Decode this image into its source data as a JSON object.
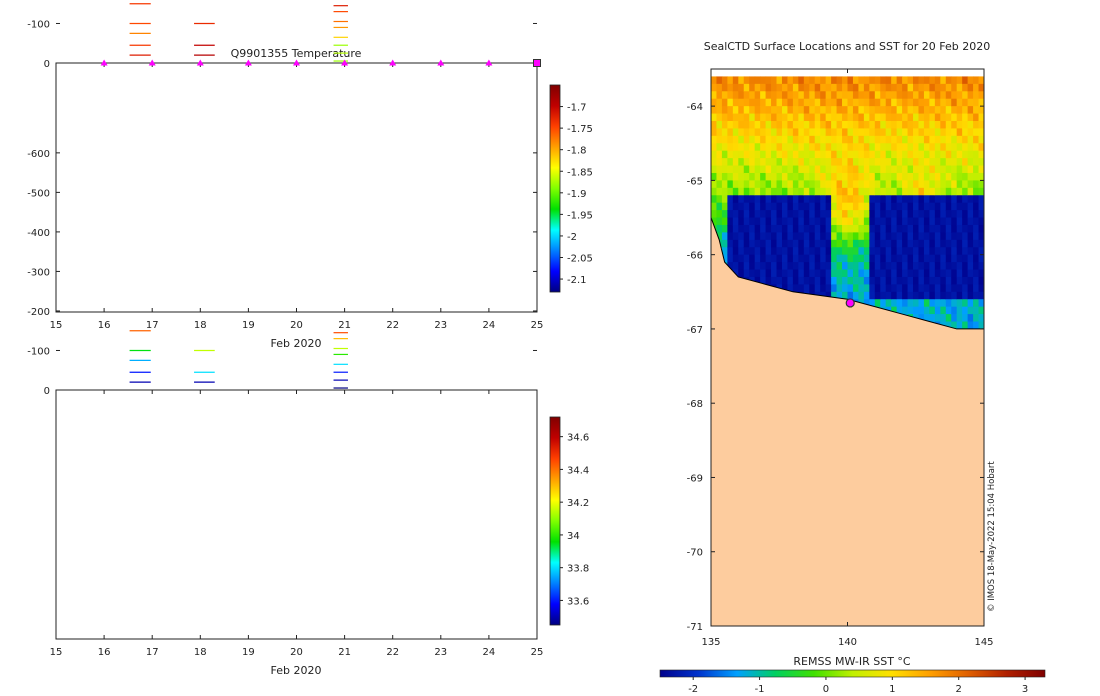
{
  "chart_data": [
    {
      "id": "temperature",
      "type": "heatmap",
      "title": "Q9901355  Temperature",
      "xlabel": "Feb 2020",
      "ylabel": "",
      "xlim": [
        15,
        25
      ],
      "ylim": [
        -630,
        0
      ],
      "xticks": [
        15,
        16,
        17,
        18,
        19,
        20,
        21,
        22,
        23,
        24,
        25
      ],
      "yticks": [
        0,
        -100,
        -200,
        -300,
        -400,
        -500,
        -600
      ],
      "profile_markers_x": [
        16,
        17,
        18,
        19,
        20,
        21,
        22,
        23,
        24
      ],
      "last_marker_x": 25,
      "colorbar": {
        "min": -2.13,
        "max": -1.65,
        "ticks": [
          -1.7,
          -1.75,
          -1.8,
          -1.85,
          -1.9,
          -1.95,
          -2,
          -2.05,
          -2.1
        ],
        "tick_labels": [
          "-1.7",
          "-1.75",
          "-1.8",
          "-1.85",
          "-1.9",
          "-1.95",
          "-2",
          "-2.05",
          "-2.1"
        ]
      },
      "profiles": [
        {
          "x0": 15.5,
          "x1": 15.93,
          "depth": 300,
          "stops": [
            [
              0,
              -1.67
            ],
            [
              0.28,
              -1.7
            ],
            [
              0.48,
              -1.76
            ],
            [
              0.62,
              -1.82
            ],
            [
              0.8,
              -1.87
            ],
            [
              1,
              -1.88
            ]
          ]
        },
        {
          "x0": 15.93,
          "x1": 16.33,
          "depth": 400,
          "stops": [
            [
              0,
              -1.85
            ],
            [
              0.1,
              -1.76
            ],
            [
              0.3,
              -1.73
            ],
            [
              0.48,
              -1.8
            ],
            [
              0.58,
              -1.88
            ],
            [
              0.72,
              -1.92
            ],
            [
              1,
              -1.95
            ]
          ]
        },
        {
          "x0": 16.33,
          "x1": 16.87,
          "depth": 460,
          "stops": [
            [
              0.43,
              -1.88
            ],
            [
              0.6,
              -1.92
            ],
            [
              1,
              -1.95
            ]
          ]
        },
        {
          "x0": 16.87,
          "x1": 17.37,
          "depth": 415,
          "stops": [
            [
              0.5,
              -1.88
            ],
            [
              0.62,
              -1.9
            ],
            [
              0.8,
              -1.95
            ],
            [
              1,
              -1.94
            ]
          ]
        },
        {
          "x0": 17.37,
          "x1": 17.83,
          "depth": 390,
          "stops": [
            [
              0,
              -1.67
            ],
            [
              0.35,
              -1.69
            ],
            [
              0.55,
              -1.74
            ],
            [
              0.7,
              -1.83
            ],
            [
              0.85,
              -1.9
            ],
            [
              1,
              -1.93
            ]
          ]
        },
        {
          "x0": 17.83,
          "x1": 18.3,
          "depth": 500,
          "stops": [
            [
              0.6,
              -1.9
            ],
            [
              0.8,
              -1.93
            ],
            [
              1,
              -1.95
            ]
          ]
        },
        {
          "x0": 18.8,
          "x1": 19.27,
          "depth": 425,
          "stops": [
            [
              0,
              -1.8
            ],
            [
              0.12,
              -1.8
            ],
            [
              0.2,
              -1.72
            ],
            [
              0.32,
              -1.67
            ],
            [
              0.45,
              -1.73
            ],
            [
              0.6,
              -1.79
            ],
            [
              0.78,
              -1.8
            ],
            [
              0.82,
              -1.88
            ],
            [
              1,
              -1.93
            ]
          ]
        },
        {
          "x0": 20.77,
          "x1": 21.07,
          "depth": 265,
          "top": 230,
          "stops": [
            [
              0,
              -1.77
            ],
            [
              1,
              -1.78
            ]
          ]
        },
        {
          "x0": 21.37,
          "x1": 21.73,
          "depth": 500,
          "stops": [
            [
              0,
              -1.84
            ],
            [
              0.04,
              -1.66
            ],
            [
              0.1,
              -1.72
            ],
            [
              0.2,
              -1.78
            ],
            [
              0.32,
              -1.83
            ],
            [
              0.42,
              -1.86
            ],
            [
              0.52,
              -1.91
            ],
            [
              1,
              -1.94
            ]
          ]
        },
        {
          "x0": 22.77,
          "x1": 23.47,
          "depth": 200,
          "stops": [
            [
              0,
              -1.87
            ],
            [
              0.12,
              -1.8
            ],
            [
              0.5,
              -1.78
            ],
            [
              1,
              -1.8
            ]
          ]
        },
        {
          "x0": 23.47,
          "x1": 24.1,
          "depth": 390,
          "stops": [
            [
              0,
              -1.82
            ],
            [
              0.2,
              -1.78
            ],
            [
              0.3,
              -1.76
            ],
            [
              0.35,
              -1.98
            ],
            [
              0.45,
              -1.92
            ],
            [
              0.75,
              -1.89
            ],
            [
              1,
              -1.84
            ]
          ]
        },
        {
          "x0": 24.1,
          "x1": 24.37,
          "depth": 520,
          "stops": [
            [
              0,
              -1.8
            ],
            [
              0.05,
              -1.88
            ],
            [
              0.1,
              -1.74
            ],
            [
              0.2,
              -1.72
            ],
            [
              0.25,
              -1.92
            ],
            [
              0.5,
              -1.9
            ],
            [
              0.7,
              -1.91
            ],
            [
              1,
              -1.93
            ]
          ]
        },
        {
          "x0": 24.37,
          "x1": 24.67,
          "depth": 500,
          "stops": [
            [
              0,
              -1.7
            ],
            [
              0.08,
              -1.82
            ],
            [
              0.2,
              -1.9
            ],
            [
              0.35,
              -1.98
            ],
            [
              0.45,
              -1.92
            ],
            [
              0.6,
              -1.88
            ],
            [
              0.8,
              -1.92
            ],
            [
              1,
              -1.93
            ]
          ]
        }
      ],
      "lines": [
        {
          "x0": 16.53,
          "x1": 16.97,
          "depths": [
            20,
            45,
            75,
            100,
            150
          ],
          "values": [
            -1.72,
            -1.74,
            -1.78,
            -1.75,
            -1.74
          ]
        },
        {
          "x0": 17.87,
          "x1": 18.3,
          "depths": [
            20,
            45,
            100
          ],
          "values": [
            -1.69,
            -1.7,
            -1.73
          ]
        },
        {
          "x0": 20.77,
          "x1": 21.07,
          "depths": [
            5,
            25,
            45,
            65,
            90,
            105,
            130,
            145
          ],
          "values": [
            -1.88,
            -1.87,
            -1.88,
            -1.82,
            -1.79,
            -1.77,
            -1.75,
            -1.72
          ]
        }
      ]
    },
    {
      "id": "salinity",
      "type": "heatmap",
      "title": "",
      "xlabel": "Feb 2020",
      "ylabel": "",
      "xlim": [
        15,
        25
      ],
      "ylim": [
        -630,
        0
      ],
      "xticks": [
        15,
        16,
        17,
        18,
        19,
        20,
        21,
        22,
        23,
        24,
        25
      ],
      "yticks": [
        0,
        -100,
        -200,
        -300,
        -400,
        -500,
        -600
      ],
      "colorbar": {
        "min": 33.45,
        "max": 34.72,
        "ticks": [
          34.6,
          34.4,
          34.2,
          34,
          33.8,
          33.6
        ],
        "tick_labels": [
          "34.6",
          "34.4",
          "34.2",
          "34",
          "33.8",
          "33.6"
        ]
      },
      "profiles": [
        {
          "x0": 15.5,
          "x1": 15.93,
          "depth": 300,
          "stops": [
            [
              0,
              33.75
            ],
            [
              0.12,
              33.85
            ],
            [
              0.22,
              34.05
            ],
            [
              0.35,
              34.2
            ],
            [
              0.5,
              34.35
            ],
            [
              0.7,
              34.45
            ],
            [
              1,
              34.5
            ]
          ]
        },
        {
          "x0": 15.93,
          "x1": 16.33,
          "depth": 400,
          "stops": [
            [
              0,
              33.75
            ],
            [
              0.08,
              33.9
            ],
            [
              0.18,
              34.1
            ],
            [
              0.35,
              34.3
            ],
            [
              0.5,
              34.42
            ],
            [
              0.75,
              34.5
            ],
            [
              1,
              34.52
            ]
          ]
        },
        {
          "x0": 16.33,
          "x1": 16.87,
          "depth": 460,
          "stops": [
            [
              0.32,
              34.42
            ],
            [
              0.6,
              34.5
            ],
            [
              1,
              34.54
            ]
          ]
        },
        {
          "x0": 16.87,
          "x1": 17.37,
          "depth": 415,
          "stops": [
            [
              0,
              33.55
            ],
            [
              0.05,
              33.5
            ],
            [
              0.12,
              33.8
            ],
            [
              0.2,
              34.05
            ],
            [
              0.35,
              34.3
            ],
            [
              0.55,
              34.45
            ],
            [
              1,
              34.52
            ]
          ]
        },
        {
          "x0": 17.37,
          "x1": 17.83,
          "depth": 390,
          "stops": [
            [
              0,
              33.45
            ],
            [
              0.08,
              33.6
            ],
            [
              0.15,
              33.85
            ],
            [
              0.28,
              34.15
            ],
            [
              0.45,
              34.35
            ],
            [
              0.65,
              34.45
            ],
            [
              1,
              34.52
            ]
          ]
        },
        {
          "x0": 17.83,
          "x1": 18.3,
          "depth": 500,
          "stops": [
            [
              0.6,
              34.5
            ],
            [
              1,
              34.55
            ]
          ]
        },
        {
          "x0": 18.8,
          "x1": 19.27,
          "depth": 425,
          "stops": [
            [
              0,
              33.45
            ],
            [
              0.08,
              33.6
            ],
            [
              0.15,
              34.0
            ],
            [
              0.25,
              34.25
            ],
            [
              0.4,
              34.4
            ],
            [
              0.6,
              34.47
            ],
            [
              1,
              34.5
            ]
          ]
        },
        {
          "x0": 20.77,
          "x1": 21.07,
          "depth": 265,
          "top": 230,
          "stops": [
            [
              0,
              34.42
            ],
            [
              1,
              34.42
            ]
          ]
        },
        {
          "x0": 21.37,
          "x1": 21.73,
          "depth": 500,
          "stops": [
            [
              0,
              33.45
            ],
            [
              0.07,
              33.7
            ],
            [
              0.15,
              34.05
            ],
            [
              0.3,
              34.35
            ],
            [
              0.55,
              34.5
            ],
            [
              1,
              34.56
            ]
          ]
        },
        {
          "x0": 22.77,
          "x1": 23.47,
          "depth": 200,
          "stops": [
            [
              0,
              33.7
            ],
            [
              0.2,
              33.95
            ],
            [
              0.45,
              34.15
            ],
            [
              0.7,
              34.3
            ],
            [
              1,
              34.38
            ]
          ]
        },
        {
          "x0": 23.47,
          "x1": 24.1,
          "depth": 390,
          "stops": [
            [
              0,
              33.6
            ],
            [
              0.08,
              33.8
            ],
            [
              0.2,
              34.05
            ],
            [
              0.35,
              34.25
            ],
            [
              0.55,
              34.42
            ],
            [
              1,
              34.52
            ]
          ]
        },
        {
          "x0": 24.1,
          "x1": 24.37,
          "depth": 520,
          "stops": [
            [
              0,
              33.55
            ],
            [
              0.1,
              33.8
            ],
            [
              0.22,
              34.1
            ],
            [
              0.4,
              34.35
            ],
            [
              0.7,
              34.5
            ],
            [
              1,
              34.56
            ]
          ]
        },
        {
          "x0": 24.37,
          "x1": 24.67,
          "depth": 500,
          "stops": [
            [
              0,
              33.8
            ],
            [
              0.1,
              34.0
            ],
            [
              0.25,
              34.2
            ],
            [
              0.45,
              34.4
            ],
            [
              0.7,
              34.5
            ],
            [
              1,
              34.55
            ]
          ]
        }
      ],
      "lines": [
        {
          "x0": 16.53,
          "x1": 16.97,
          "depths": [
            20,
            45,
            75,
            100,
            150
          ],
          "values": [
            33.5,
            33.6,
            33.75,
            33.95,
            34.42
          ]
        },
        {
          "x0": 17.87,
          "x1": 18.3,
          "depths": [
            20,
            45,
            100
          ],
          "values": [
            33.5,
            33.8,
            34.15
          ]
        },
        {
          "x0": 20.77,
          "x1": 21.07,
          "depths": [
            5,
            25,
            45,
            65,
            90,
            105,
            130,
            145
          ],
          "values": [
            33.45,
            33.5,
            33.6,
            33.8,
            34.0,
            34.15,
            34.3,
            34.45
          ]
        }
      ]
    },
    {
      "id": "sst-map",
      "type": "heatmap",
      "title": "SealCTD Surface Locations and SST for 20 Feb 2020",
      "xlabel": "",
      "ylabel": "",
      "xlim": [
        135,
        145
      ],
      "ylim": [
        -71,
        -63.5
      ],
      "xticks": [
        135,
        140,
        145
      ],
      "yticks": [
        -64,
        -65,
        -66,
        -67,
        -68,
        -69,
        -70,
        -71
      ],
      "watermark": "© IMOS 18-May-2022 15:04 Hobart",
      "colorbar": {
        "label": "REMSS MW-IR SST °C",
        "min": -2.5,
        "max": 3.3,
        "ticks": [
          -2,
          -1,
          0,
          1,
          2,
          3
        ],
        "tick_labels": [
          "-2",
          "-1",
          "0",
          "1",
          "2",
          "3"
        ]
      },
      "sst_region": {
        "lon": [
          135,
          145
        ],
        "lat": [
          -65.7,
          -63.6
        ]
      },
      "coastline": [
        [
          135,
          -65.5
        ],
        [
          135.3,
          -65.8
        ],
        [
          135.5,
          -66.1
        ],
        [
          136,
          -66.3
        ],
        [
          137,
          -66.4
        ],
        [
          138,
          -66.5
        ],
        [
          139,
          -66.55
        ],
        [
          140,
          -66.6
        ],
        [
          141,
          -66.7
        ],
        [
          142,
          -66.8
        ],
        [
          143,
          -66.9
        ],
        [
          144,
          -67.0
        ],
        [
          145,
          -67.0
        ]
      ],
      "positions": [
        {
          "lon": 140.1,
          "lat": -66.65
        }
      ],
      "land_color": "#fdcc9e"
    }
  ]
}
